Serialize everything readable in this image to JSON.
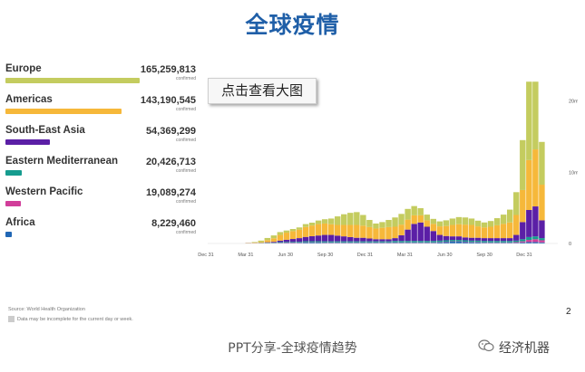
{
  "page_title": "全球疫情",
  "view_button_label": "点击查看大图",
  "footer_text": "PPT分享-全球疫情趋势",
  "page_number": "2",
  "brand_name": "经济机器",
  "icons": {
    "wechat": "wechat-icon"
  },
  "source_note": "Source: World Health Organization",
  "incomplete_note": "Data may be incomplete for the current day or week.",
  "regions": [
    {
      "name": "Europe",
      "value": "165,259,813",
      "sub": "confirmed",
      "color": "#c4cc5f",
      "share": 1.0
    },
    {
      "name": "Americas",
      "value": "143,190,545",
      "sub": "confirmed",
      "color": "#f6b83a",
      "share": 0.866
    },
    {
      "name": "South-East Asia",
      "value": "54,369,299",
      "sub": "confirmed",
      "color": "#5b1fa6",
      "share": 0.329
    },
    {
      "name": "Eastern Mediterranean",
      "value": "20,426,713",
      "sub": "confirmed",
      "color": "#169c8f",
      "share": 0.124
    },
    {
      "name": "Western Pacific",
      "value": "19,089,274",
      "sub": "confirmed",
      "color": "#d13e9a",
      "share": 0.116
    },
    {
      "name": "Africa",
      "value": "8,229,460",
      "sub": "confirmed",
      "color": "#2167b5",
      "share": 0.05
    }
  ],
  "chart_data": {
    "type": "bar",
    "stacked": true,
    "x_ticks": [
      "Dec 31",
      "Mar 31",
      "Jun 30",
      "Sep 30",
      "Dec 31",
      "Mar 31",
      "Jun 30",
      "Sep 30",
      "Dec 31"
    ],
    "y_ticks": [
      "20m",
      "10m",
      "0"
    ],
    "ylim": [
      0,
      24000000
    ],
    "series_order": [
      "Africa",
      "Western Pacific",
      "Eastern Mediterranean",
      "South-East Asia",
      "Americas",
      "Europe"
    ],
    "weeks": [
      [
        0,
        0,
        0,
        0,
        0,
        0
      ],
      [
        0,
        0,
        0,
        0,
        0,
        0
      ],
      [
        0,
        0,
        0,
        0,
        0,
        0
      ],
      [
        0,
        0,
        0,
        0,
        0,
        0
      ],
      [
        0,
        0,
        0,
        0,
        0,
        0
      ],
      [
        0,
        0.05,
        0,
        0,
        0,
        0.05
      ],
      [
        0,
        0.05,
        0,
        0,
        0.05,
        0.1
      ],
      [
        0,
        0.05,
        0.05,
        0,
        0.1,
        0.2
      ],
      [
        0.02,
        0.05,
        0.05,
        0.05,
        0.3,
        0.3
      ],
      [
        0.03,
        0.05,
        0.05,
        0.1,
        0.5,
        0.4
      ],
      [
        0.05,
        0.05,
        0.1,
        0.2,
        0.8,
        0.4
      ],
      [
        0.07,
        0.05,
        0.1,
        0.3,
        1.0,
        0.3
      ],
      [
        0.08,
        0.05,
        0.1,
        0.4,
        1.1,
        0.3
      ],
      [
        0.1,
        0.05,
        0.1,
        0.5,
        1.2,
        0.3
      ],
      [
        0.12,
        0.05,
        0.15,
        0.6,
        1.4,
        0.4
      ],
      [
        0.12,
        0.05,
        0.15,
        0.7,
        1.5,
        0.4
      ],
      [
        0.12,
        0.05,
        0.15,
        0.8,
        1.6,
        0.5
      ],
      [
        0.1,
        0.05,
        0.15,
        0.9,
        1.6,
        0.6
      ],
      [
        0.1,
        0.05,
        0.15,
        0.9,
        1.5,
        0.8
      ],
      [
        0.1,
        0.05,
        0.15,
        0.8,
        1.5,
        1.2
      ],
      [
        0.1,
        0.05,
        0.15,
        0.7,
        1.6,
        1.5
      ],
      [
        0.1,
        0.05,
        0.15,
        0.6,
        1.7,
        1.7
      ],
      [
        0.1,
        0.05,
        0.15,
        0.5,
        1.8,
        1.8
      ],
      [
        0.1,
        0.05,
        0.15,
        0.5,
        1.7,
        1.5
      ],
      [
        0.1,
        0.05,
        0.15,
        0.4,
        1.6,
        1.0
      ],
      [
        0.1,
        0.05,
        0.15,
        0.3,
        1.5,
        0.7
      ],
      [
        0.1,
        0.05,
        0.15,
        0.3,
        1.6,
        0.8
      ],
      [
        0.1,
        0.05,
        0.15,
        0.3,
        1.7,
        1.0
      ],
      [
        0.1,
        0.05,
        0.2,
        0.4,
        1.6,
        1.3
      ],
      [
        0.1,
        0.05,
        0.2,
        0.8,
        1.5,
        1.5
      ],
      [
        0.1,
        0.05,
        0.2,
        1.6,
        1.4,
        1.5
      ],
      [
        0.1,
        0.05,
        0.2,
        2.4,
        1.2,
        1.3
      ],
      [
        0.1,
        0.05,
        0.2,
        2.6,
        1.0,
        1.0
      ],
      [
        0.1,
        0.05,
        0.2,
        2.0,
        0.9,
        0.8
      ],
      [
        0.1,
        0.05,
        0.2,
        1.4,
        1.0,
        0.7
      ],
      [
        0.15,
        0.05,
        0.2,
        0.8,
        1.2,
        0.7
      ],
      [
        0.2,
        0.05,
        0.2,
        0.6,
        1.4,
        0.8
      ],
      [
        0.25,
        0.05,
        0.2,
        0.5,
        1.6,
        0.9
      ],
      [
        0.25,
        0.05,
        0.2,
        0.5,
        1.7,
        1.0
      ],
      [
        0.2,
        0.05,
        0.2,
        0.4,
        1.8,
        1.0
      ],
      [
        0.15,
        0.05,
        0.2,
        0.4,
        1.8,
        0.9
      ],
      [
        0.15,
        0.05,
        0.2,
        0.4,
        1.6,
        0.8
      ],
      [
        0.1,
        0.05,
        0.2,
        0.4,
        1.5,
        0.7
      ],
      [
        0.1,
        0.05,
        0.2,
        0.4,
        1.6,
        0.8
      ],
      [
        0.1,
        0.05,
        0.2,
        0.4,
        1.8,
        1.0
      ],
      [
        0.1,
        0.05,
        0.2,
        0.4,
        2.0,
        1.3
      ],
      [
        0.1,
        0.05,
        0.2,
        0.4,
        2.2,
        1.8
      ],
      [
        0.1,
        0.1,
        0.2,
        0.8,
        2.8,
        3.2
      ],
      [
        0.15,
        0.15,
        0.3,
        2.4,
        4.5,
        7.0
      ],
      [
        0.2,
        0.3,
        0.4,
        3.8,
        7.0,
        11.0
      ],
      [
        0.2,
        0.4,
        0.4,
        4.2,
        8.0,
        9.5
      ],
      [
        0.15,
        0.3,
        0.3,
        2.5,
        5.0,
        6.0
      ]
    ],
    "zero_weeks_after_data": 2,
    "series_colors": [
      "#2167b5",
      "#d13e9a",
      "#169c8f",
      "#5b1fa6",
      "#f6b83a",
      "#c4cc5f"
    ]
  }
}
